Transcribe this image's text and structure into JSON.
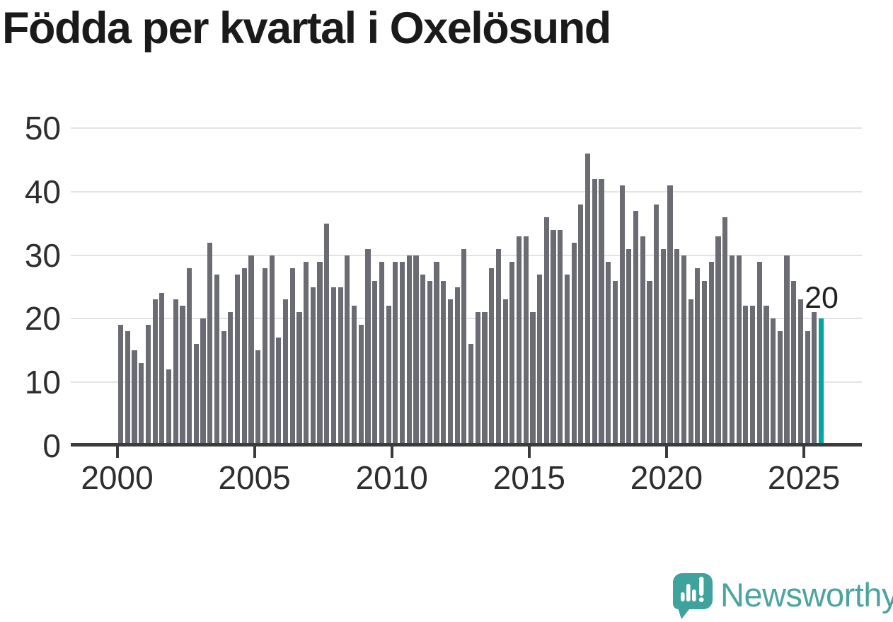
{
  "title": "Födda per kvartal i Oxelösund",
  "annotation": {
    "last_value_label": "20"
  },
  "logo": {
    "brand": "Newsworthy",
    "icon": "newsworthy-speech-bubble-chart-icon"
  },
  "colors": {
    "bar": "#6B6B74",
    "highlight": "#00A79E",
    "axis": "#3B3B3B",
    "grid": "#E3E3E3",
    "title_text": "#1A1A1A",
    "tick_text": "#2E2E2E",
    "logo_teal": "#3FA29D",
    "logo_text": "#4CA4A1"
  },
  "chart_data": {
    "type": "bar",
    "title": "Födda per kvartal i Oxelösund",
    "x_unit": "quarter",
    "x_start": "2000 Q1",
    "x_end": "2025 Q3",
    "start_year": 2000,
    "quarters_per_year": 4,
    "xticks": [
      "2000",
      "2005",
      "2010",
      "2015",
      "2020",
      "2025"
    ],
    "yticks": [
      0,
      10,
      20,
      30,
      40,
      50
    ],
    "ylim": [
      0,
      50
    ],
    "grid": "horizontal",
    "legend": "none",
    "highlight_index": 102,
    "highlight_value_label": "20",
    "values": [
      19,
      18,
      15,
      13,
      19,
      23,
      24,
      12,
      23,
      22,
      28,
      16,
      20,
      32,
      27,
      18,
      21,
      27,
      28,
      30,
      15,
      28,
      30,
      17,
      23,
      28,
      21,
      29,
      25,
      29,
      35,
      25,
      25,
      30,
      22,
      19,
      31,
      26,
      29,
      22,
      29,
      29,
      30,
      30,
      27,
      26,
      29,
      26,
      23,
      25,
      31,
      16,
      21,
      21,
      28,
      31,
      23,
      29,
      33,
      33,
      21,
      27,
      36,
      34,
      34,
      27,
      32,
      38,
      46,
      42,
      42,
      29,
      26,
      41,
      31,
      37,
      33,
      26,
      38,
      31,
      41,
      31,
      30,
      23,
      28,
      26,
      29,
      33,
      36,
      30,
      30,
      22,
      22,
      29,
      22,
      20,
      18,
      30,
      26,
      23,
      18,
      21,
      20
    ]
  }
}
